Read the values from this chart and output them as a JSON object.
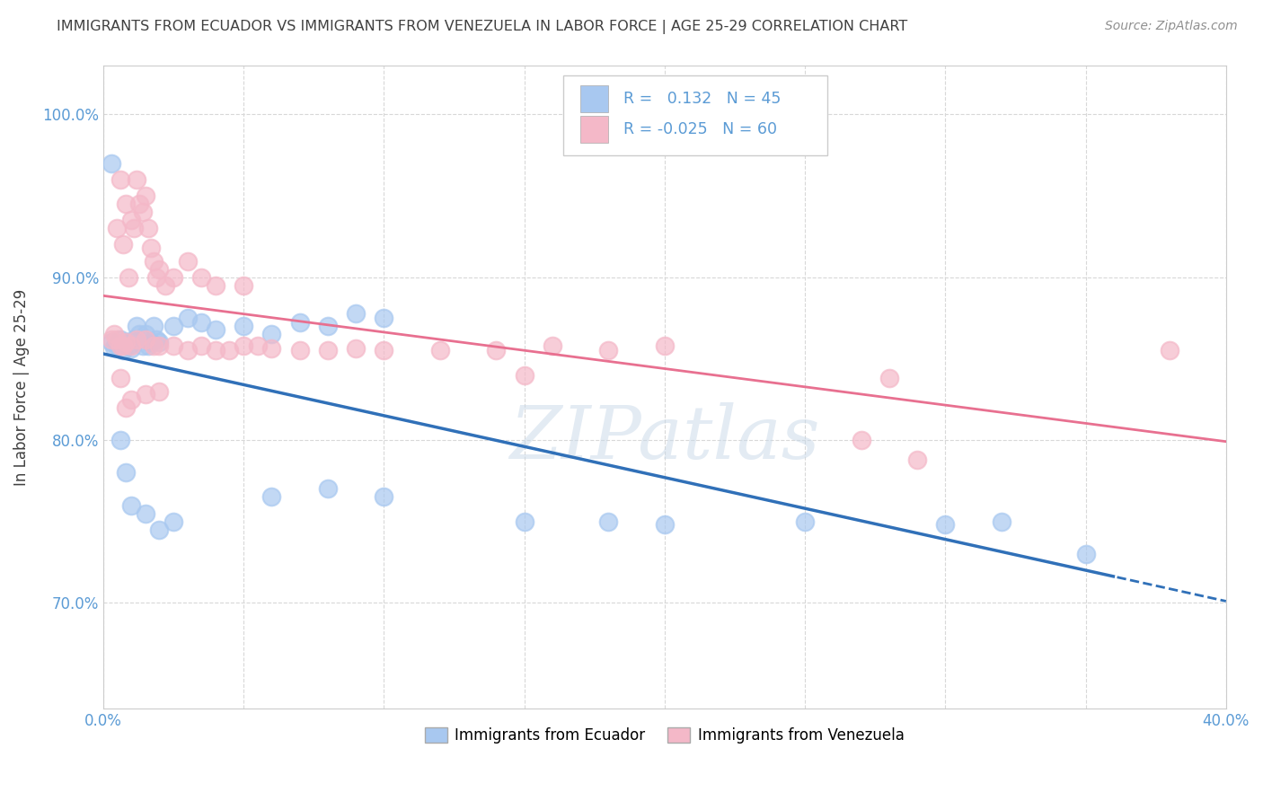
{
  "title": "IMMIGRANTS FROM ECUADOR VS IMMIGRANTS FROM VENEZUELA IN LABOR FORCE | AGE 25-29 CORRELATION CHART",
  "source": "Source: ZipAtlas.com",
  "ylabel": "In Labor Force | Age 25-29",
  "xlim": [
    0.0,
    0.4
  ],
  "ylim": [
    0.635,
    1.03
  ],
  "ecuador_color": "#a8c8f0",
  "venezuela_color": "#f4b8c8",
  "ecuador_line_color": "#3070b8",
  "venezuela_line_color": "#e87090",
  "ecuador_R": 0.132,
  "ecuador_N": 45,
  "venezuela_R": -0.025,
  "venezuela_N": 60,
  "watermark": "ZIPatlas",
  "ecuador_points": [
    [
      0.003,
      0.86
    ],
    [
      0.004,
      0.857
    ],
    [
      0.005,
      0.858
    ],
    [
      0.006,
      0.862
    ],
    [
      0.007,
      0.855
    ],
    [
      0.008,
      0.86
    ],
    [
      0.009,
      0.858
    ],
    [
      0.01,
      0.856
    ],
    [
      0.011,
      0.862
    ],
    [
      0.012,
      0.87
    ],
    [
      0.013,
      0.865
    ],
    [
      0.014,
      0.858
    ],
    [
      0.015,
      0.865
    ],
    [
      0.016,
      0.858
    ],
    [
      0.017,
      0.86
    ],
    [
      0.018,
      0.87
    ],
    [
      0.019,
      0.862
    ],
    [
      0.02,
      0.86
    ],
    [
      0.025,
      0.87
    ],
    [
      0.03,
      0.875
    ],
    [
      0.035,
      0.872
    ],
    [
      0.04,
      0.868
    ],
    [
      0.05,
      0.87
    ],
    [
      0.06,
      0.865
    ],
    [
      0.07,
      0.872
    ],
    [
      0.08,
      0.87
    ],
    [
      0.09,
      0.878
    ],
    [
      0.1,
      0.875
    ],
    [
      0.006,
      0.8
    ],
    [
      0.008,
      0.78
    ],
    [
      0.01,
      0.76
    ],
    [
      0.015,
      0.755
    ],
    [
      0.02,
      0.745
    ],
    [
      0.025,
      0.75
    ],
    [
      0.06,
      0.765
    ],
    [
      0.08,
      0.77
    ],
    [
      0.1,
      0.765
    ],
    [
      0.15,
      0.75
    ],
    [
      0.18,
      0.75
    ],
    [
      0.2,
      0.748
    ],
    [
      0.25,
      0.75
    ],
    [
      0.3,
      0.748
    ],
    [
      0.35,
      0.73
    ],
    [
      0.003,
      0.97
    ],
    [
      0.32,
      0.75
    ]
  ],
  "venezuela_points": [
    [
      0.003,
      0.862
    ],
    [
      0.004,
      0.865
    ],
    [
      0.005,
      0.93
    ],
    [
      0.006,
      0.96
    ],
    [
      0.007,
      0.92
    ],
    [
      0.008,
      0.945
    ],
    [
      0.009,
      0.9
    ],
    [
      0.01,
      0.935
    ],
    [
      0.011,
      0.93
    ],
    [
      0.012,
      0.96
    ],
    [
      0.013,
      0.945
    ],
    [
      0.014,
      0.94
    ],
    [
      0.015,
      0.95
    ],
    [
      0.016,
      0.93
    ],
    [
      0.017,
      0.918
    ],
    [
      0.018,
      0.91
    ],
    [
      0.019,
      0.9
    ],
    [
      0.02,
      0.905
    ],
    [
      0.022,
      0.895
    ],
    [
      0.025,
      0.9
    ],
    [
      0.03,
      0.91
    ],
    [
      0.035,
      0.9
    ],
    [
      0.04,
      0.895
    ],
    [
      0.05,
      0.895
    ],
    [
      0.005,
      0.862
    ],
    [
      0.006,
      0.858
    ],
    [
      0.007,
      0.858
    ],
    [
      0.008,
      0.86
    ],
    [
      0.01,
      0.858
    ],
    [
      0.012,
      0.862
    ],
    [
      0.015,
      0.862
    ],
    [
      0.018,
      0.858
    ],
    [
      0.02,
      0.858
    ],
    [
      0.025,
      0.858
    ],
    [
      0.03,
      0.855
    ],
    [
      0.035,
      0.858
    ],
    [
      0.04,
      0.855
    ],
    [
      0.045,
      0.855
    ],
    [
      0.05,
      0.858
    ],
    [
      0.055,
      0.858
    ],
    [
      0.06,
      0.856
    ],
    [
      0.07,
      0.855
    ],
    [
      0.08,
      0.855
    ],
    [
      0.09,
      0.856
    ],
    [
      0.1,
      0.855
    ],
    [
      0.12,
      0.855
    ],
    [
      0.14,
      0.855
    ],
    [
      0.16,
      0.858
    ],
    [
      0.18,
      0.855
    ],
    [
      0.2,
      0.858
    ],
    [
      0.006,
      0.838
    ],
    [
      0.008,
      0.82
    ],
    [
      0.01,
      0.825
    ],
    [
      0.015,
      0.828
    ],
    [
      0.02,
      0.83
    ],
    [
      0.15,
      0.84
    ],
    [
      0.27,
      0.8
    ],
    [
      0.29,
      0.788
    ],
    [
      0.28,
      0.838
    ],
    [
      0.38,
      0.855
    ]
  ],
  "background_color": "#ffffff",
  "grid_color": "#d8d8d8",
  "tick_label_color": "#5b9bd5",
  "title_color": "#404040"
}
